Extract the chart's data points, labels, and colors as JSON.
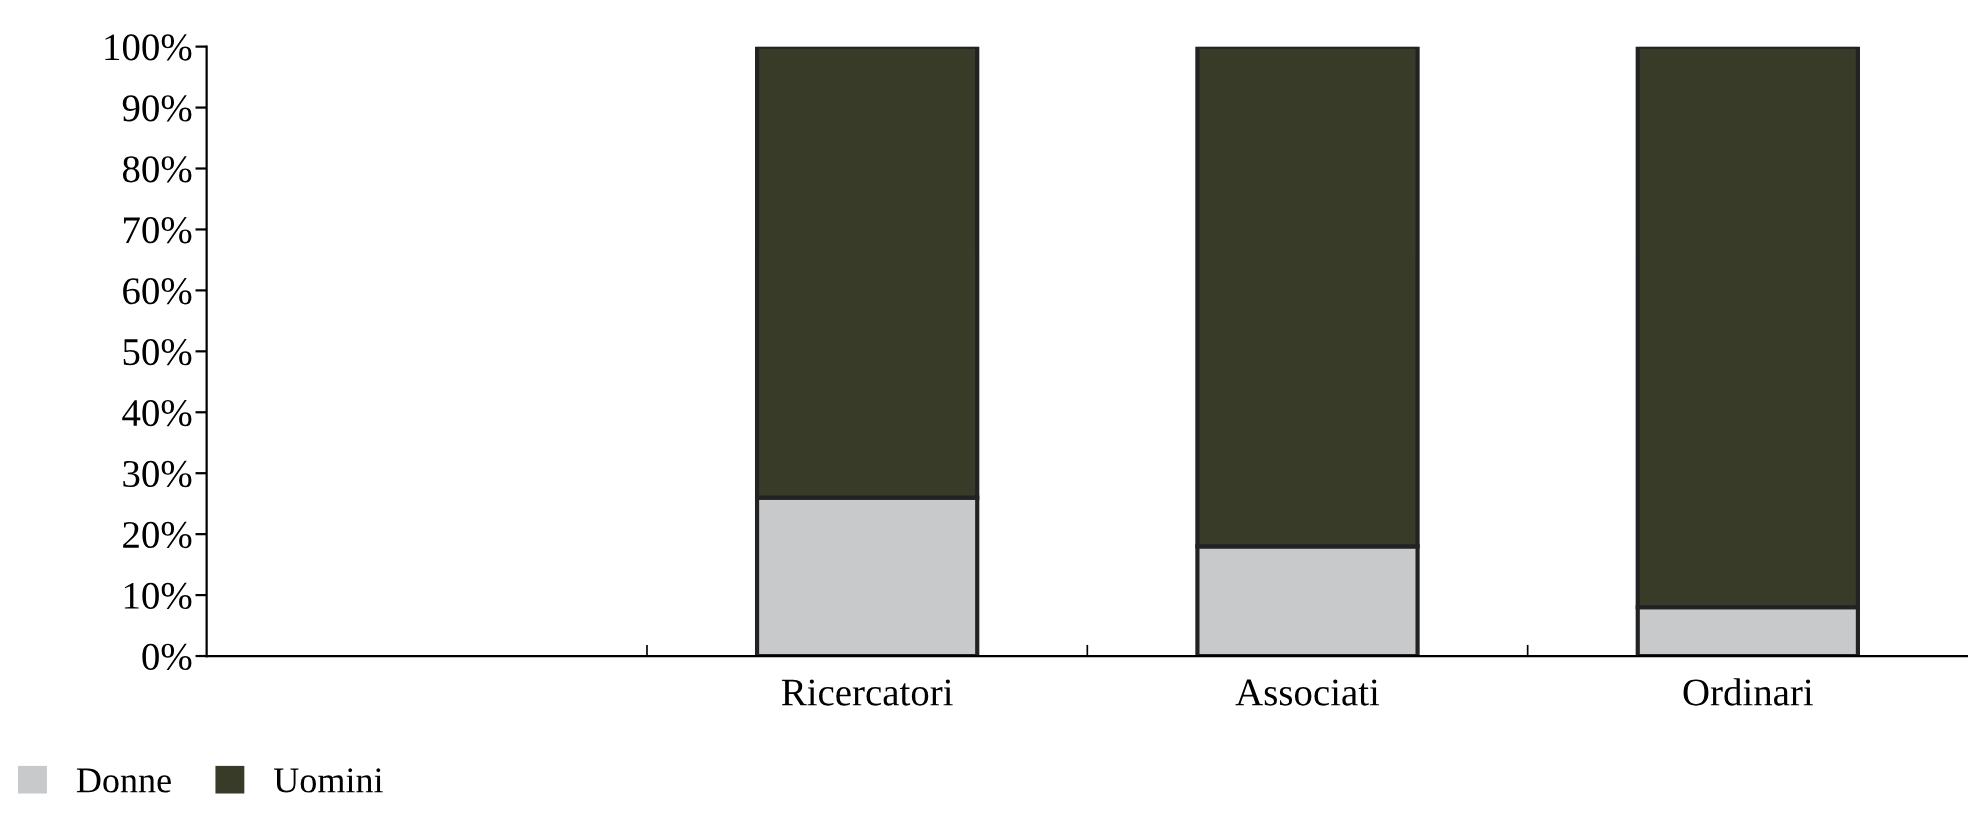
{
  "chart_data": {
    "type": "bar",
    "stacked": true,
    "categories": [
      null,
      "Ricercatori",
      "Associati",
      "Ordinari"
    ],
    "series": [
      {
        "name": "Donne",
        "color": "#c8c9cb",
        "values": [
          null,
          26,
          18,
          8
        ]
      },
      {
        "name": "Uomini",
        "color": "#393b29",
        "values": [
          null,
          74,
          82,
          92
        ]
      }
    ],
    "ylim": [
      0,
      100
    ],
    "yticks": [
      {
        "value": 0,
        "label": "0%"
      },
      {
        "value": 10,
        "label": "10%"
      },
      {
        "value": 20,
        "label": "20%"
      },
      {
        "value": 30,
        "label": "30%"
      },
      {
        "value": 40,
        "label": "40%"
      },
      {
        "value": 50,
        "label": "50%"
      },
      {
        "value": 60,
        "label": "60%"
      },
      {
        "value": 70,
        "label": "70%"
      },
      {
        "value": 80,
        "label": "80%"
      },
      {
        "value": 90,
        "label": "90%"
      },
      {
        "value": 100,
        "label": "100%"
      }
    ],
    "grid": false,
    "legend": "bottom left"
  }
}
